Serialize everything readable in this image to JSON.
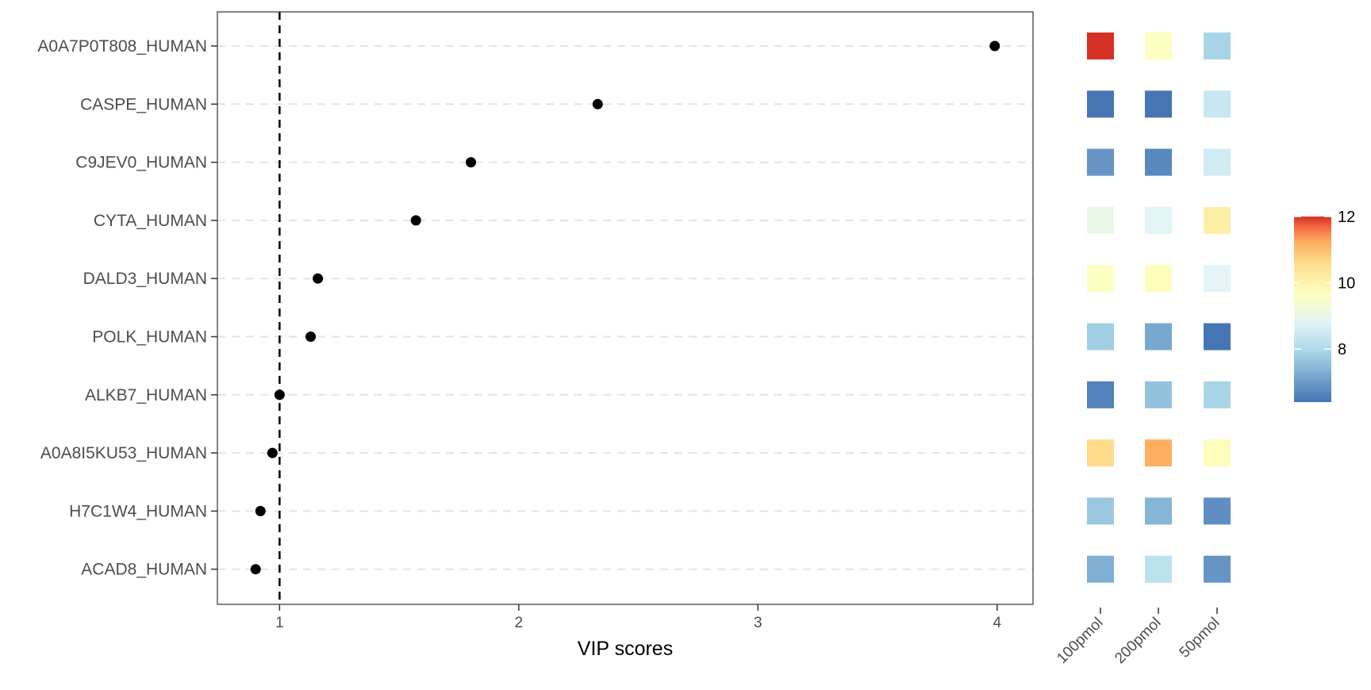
{
  "chart_data": {
    "type": "scatter",
    "xlabel": "VIP scores",
    "xlim": [
      0.74,
      4.15
    ],
    "xticks": [
      1,
      2,
      3,
      4
    ],
    "reference_line": {
      "x": 1,
      "style": "dashed"
    },
    "grid": "horizontal dashed",
    "proteins": [
      "A0A7P0T808_HUMAN",
      "CASPE_HUMAN",
      "C9JEV0_HUMAN",
      "CYTA_HUMAN",
      "DALD3_HUMAN",
      "POLK_HUMAN",
      "ALKB7_HUMAN",
      "A0A8I5KU53_HUMAN",
      "H7C1W4_HUMAN",
      "ACAD8_HUMAN"
    ],
    "vip_scores": [
      3.99,
      2.33,
      1.8,
      1.57,
      1.16,
      1.13,
      1.0,
      0.97,
      0.92,
      0.9
    ],
    "heatmap": {
      "columns": [
        "100pmol",
        "200pmol",
        "50pmol"
      ],
      "values": [
        [
          12.0,
          9.6,
          7.9
        ],
        [
          6.3,
          5.9,
          8.4
        ],
        [
          6.9,
          6.7,
          8.5
        ],
        [
          9.0,
          8.8,
          10.1
        ],
        [
          9.6,
          9.7,
          8.8
        ],
        [
          7.8,
          7.2,
          6.4
        ],
        [
          6.6,
          7.6,
          7.9
        ],
        [
          10.6,
          11.2,
          9.7
        ],
        [
          7.7,
          7.4,
          6.8
        ],
        [
          7.3,
          8.2,
          6.9
        ]
      ],
      "legend": {
        "ticks": [
          8,
          10,
          12
        ],
        "min": 6.4,
        "max": 12.0,
        "position": "right"
      }
    }
  }
}
